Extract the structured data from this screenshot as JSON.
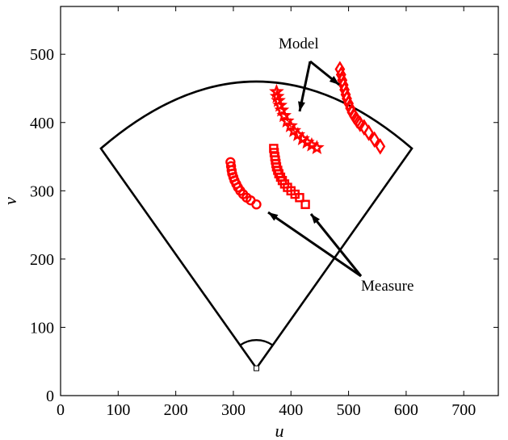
{
  "chart_data": {
    "type": "scatter",
    "xlabel": "u",
    "ylabel": "v",
    "xlim": [
      0,
      760
    ],
    "ylim": [
      0,
      570
    ],
    "xticks": [
      "0",
      "100",
      "200",
      "300",
      "400",
      "500",
      "600",
      "700"
    ],
    "yticks": [
      "0",
      "100",
      "200",
      "300",
      "400",
      "500"
    ],
    "grid": false,
    "fan_outline": {
      "apex": [
        340,
        40
      ],
      "left_end": [
        70,
        362
      ],
      "right_end": [
        610,
        362
      ],
      "arc_top_v": 460,
      "apex_arc_radius": 35
    },
    "series": [
      {
        "marker": "circle",
        "color": "#ff0000",
        "points": [
          [
            295,
            342
          ],
          [
            296,
            336
          ],
          [
            297,
            330
          ],
          [
            298,
            325
          ],
          [
            300,
            320
          ],
          [
            302,
            315
          ],
          [
            305,
            310
          ],
          [
            308,
            305
          ],
          [
            312,
            300
          ],
          [
            317,
            295
          ],
          [
            323,
            290
          ],
          [
            330,
            286
          ],
          [
            340,
            280
          ]
        ]
      },
      {
        "marker": "square",
        "color": "#ff0000",
        "points": [
          [
            370,
            362
          ],
          [
            371,
            356
          ],
          [
            372,
            350
          ],
          [
            373,
            345
          ],
          [
            374,
            340
          ],
          [
            375,
            335
          ],
          [
            377,
            330
          ],
          [
            379,
            325
          ],
          [
            382,
            320
          ],
          [
            385,
            315
          ],
          [
            389,
            310
          ],
          [
            394,
            305
          ],
          [
            400,
            300
          ],
          [
            407,
            295
          ],
          [
            415,
            290
          ],
          [
            425,
            280
          ]
        ]
      },
      {
        "marker": "star",
        "color": "#ff0000",
        "points": [
          [
            375,
            445
          ],
          [
            376,
            438
          ],
          [
            378,
            432
          ],
          [
            381,
            425
          ],
          [
            384,
            418
          ],
          [
            388,
            410
          ],
          [
            393,
            402
          ],
          [
            399,
            395
          ],
          [
            405,
            388
          ],
          [
            412,
            382
          ],
          [
            420,
            376
          ],
          [
            428,
            371
          ],
          [
            436,
            367
          ],
          [
            445,
            363
          ]
        ]
      },
      {
        "marker": "diamond",
        "color": "#ff0000",
        "points": [
          [
            485,
            478
          ],
          [
            487,
            470
          ],
          [
            489,
            462
          ],
          [
            491,
            455
          ],
          [
            493,
            448
          ],
          [
            495,
            441
          ],
          [
            497,
            435
          ],
          [
            500,
            428
          ],
          [
            503,
            421
          ],
          [
            506,
            415
          ],
          [
            510,
            409
          ],
          [
            515,
            403
          ],
          [
            520,
            398
          ],
          [
            527,
            393
          ],
          [
            535,
            385
          ],
          [
            545,
            375
          ],
          [
            555,
            365
          ]
        ]
      }
    ],
    "annotations": [
      {
        "text": "Model"
      },
      {
        "text": "Measure"
      }
    ]
  }
}
